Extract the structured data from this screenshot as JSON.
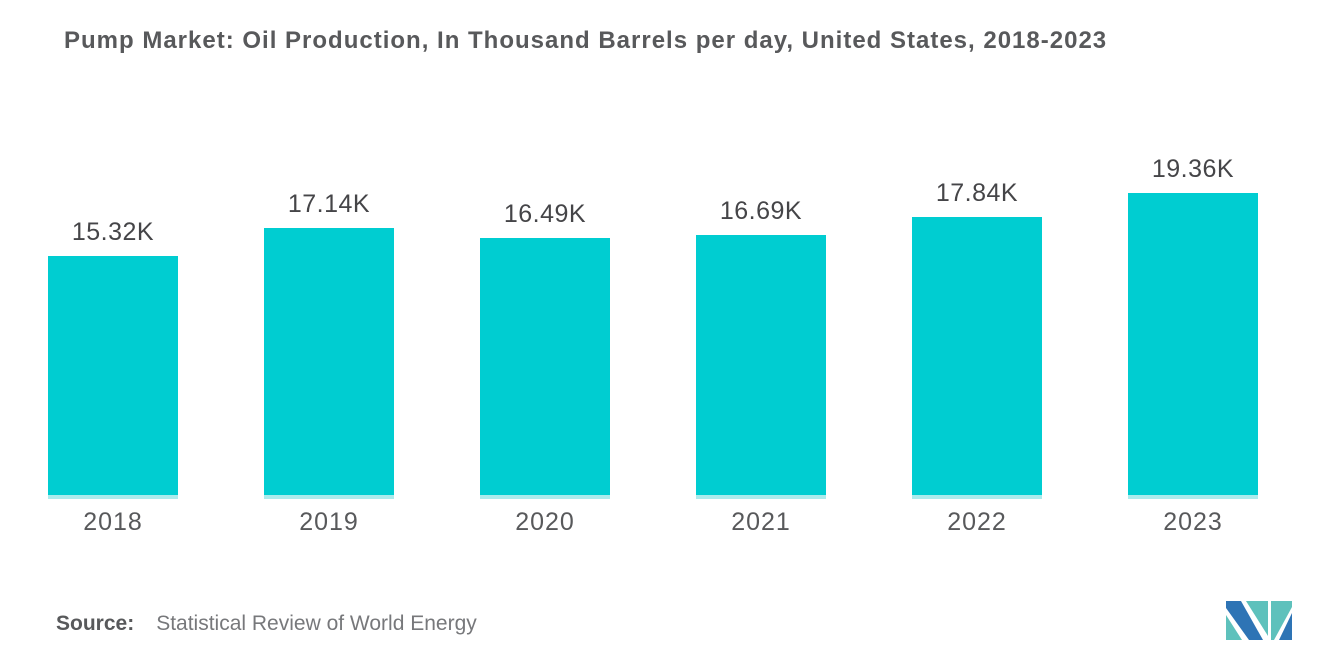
{
  "header": {
    "title": "Pump Market: Oil Production, In Thousand Barrels per day, United States, 2018-2023"
  },
  "footer": {
    "source_label": "Source:",
    "source_text": "Statistical Review of World Energy",
    "logo_icon": "mordor-intelligence-logo"
  },
  "colors": {
    "bar": "#00CDD1",
    "bar_base_glow": "#ABEBEC",
    "title_text": "#58595B",
    "value_label_text": "#454548",
    "axis_label_text": "#58595B",
    "source_text": "#77787B",
    "logo_teal": "#5EC1BC",
    "logo_blue": "#2E74B5",
    "background": "#FFFFFF"
  },
  "chart_data": {
    "type": "bar",
    "title": "Pump Market: Oil Production, In Thousand Barrels per day, United States, 2018-2023",
    "categories": [
      "2018",
      "2019",
      "2020",
      "2021",
      "2022",
      "2023"
    ],
    "values": [
      15.32,
      17.14,
      16.49,
      16.69,
      17.84,
      19.36
    ],
    "value_labels": [
      "15.32K",
      "17.14K",
      "16.49K",
      "16.69K",
      "17.84K",
      "19.36K"
    ],
    "series_name": "Oil Production (Thousand Barrels per day)",
    "xlabel": "",
    "ylabel": "Oil Production, In Thousand Barrels per day",
    "ylim": [
      0,
      20
    ],
    "grid": false,
    "legend": false,
    "data_labels": true,
    "bar_color": "#00CDD1",
    "source": "Statistical Review of World Energy"
  }
}
